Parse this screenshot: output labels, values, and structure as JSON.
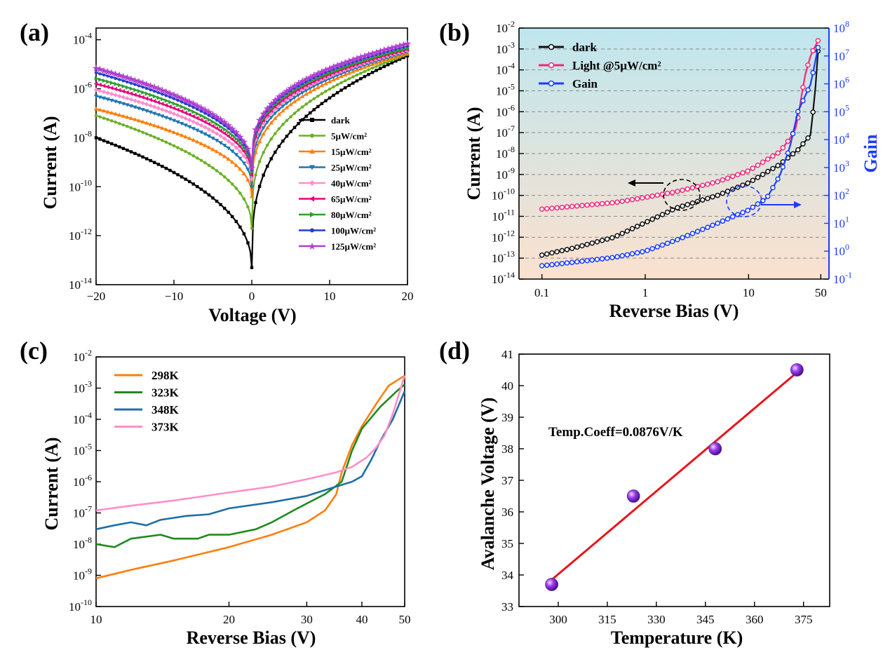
{
  "panels": [
    {
      "label": "(a)"
    },
    {
      "label": "(b)"
    },
    {
      "label": "(c)"
    },
    {
      "label": "(d)"
    }
  ],
  "chart_data": [
    {
      "type": "line",
      "panel": "(a)",
      "xlabel": "Voltage (V)",
      "ylabel": "Current (A)",
      "xlim": [
        -20,
        20
      ],
      "ylim": [
        1e-14,
        0.0003
      ],
      "yscale": "log",
      "xticks": [
        -20,
        -10,
        0,
        10,
        20
      ],
      "xtick_labels": [
        "−20",
        "−10",
        "0",
        "10",
        "20"
      ],
      "yticks": [
        1e-14,
        1e-12,
        1e-10,
        1e-08,
        1e-06,
        0.0001
      ],
      "ytick_labels": [
        [
          "10",
          "-14"
        ],
        [
          "10",
          "-12"
        ],
        [
          "10",
          "-10"
        ],
        [
          "10",
          "-8"
        ],
        [
          "10",
          "-6"
        ],
        [
          "10",
          "-4"
        ]
      ],
      "legend_position": "right",
      "series": [
        {
          "name": "dark",
          "color": "#000000",
          "marker": "square",
          "i_neg20": 1e-08,
          "i_pos20": 2.2e-05,
          "i_min": 5e-14
        },
        {
          "name": "5µW/cm²",
          "color": "#6ab023",
          "marker": "circle",
          "i_neg20": 8e-08,
          "i_pos20": 2.5e-05,
          "i_min": 2e-12
        },
        {
          "name": "15µW/cm²",
          "color": "#ff7f0e",
          "marker": "triangle-up",
          "i_neg20": 1.5e-07,
          "i_pos20": 2.8e-05,
          "i_min": 4e-11
        },
        {
          "name": "25µW/cm²",
          "color": "#1f77b4",
          "marker": "triangle-down",
          "i_neg20": 5e-07,
          "i_pos20": 3.2e-05,
          "i_min": 1e-10
        },
        {
          "name": "40µW/cm²",
          "color": "#ff8fcf",
          "marker": "diamond",
          "i_neg20": 9e-07,
          "i_pos20": 3.6e-05,
          "i_min": 2e-10
        },
        {
          "name": "65µW/cm²",
          "color": "#e6007e",
          "marker": "triangle-left",
          "i_neg20": 1.6e-06,
          "i_pos20": 4e-05,
          "i_min": 3e-10
        },
        {
          "name": "80µW/cm²",
          "color": "#2ca02c",
          "marker": "triangle-right",
          "i_neg20": 2.6e-06,
          "i_pos20": 4.5e-05,
          "i_min": 4e-10
        },
        {
          "name": "100µW/cm²",
          "color": "#1f3fcf",
          "marker": "hexagon",
          "i_neg20": 4.5e-06,
          "i_pos20": 5.5e-05,
          "i_min": 5e-10
        },
        {
          "name": "125µW/cm²",
          "color": "#b03fd0",
          "marker": "star",
          "i_neg20": 7e-06,
          "i_pos20": 7e-05,
          "i_min": 6e-10
        }
      ]
    },
    {
      "type": "line",
      "panel": "(b)",
      "xlabel": "Reverse Bias (V)",
      "ylabel": "Current (A)",
      "ylabel_right": "Gain",
      "xscale": "log",
      "xlim": [
        0.06,
        60
      ],
      "ylim": [
        1e-14,
        0.01
      ],
      "ylim_right": [
        0.1,
        100000000.0
      ],
      "yscale": "log",
      "xticks": [
        0.1,
        1,
        10,
        50
      ],
      "xtick_labels": [
        "0.1",
        "1",
        "10",
        "50"
      ],
      "yticks": [
        1e-14,
        1e-13,
        1e-12,
        1e-11,
        1e-10,
        1e-09,
        1e-08,
        1e-07,
        1e-06,
        1e-05,
        0.0001,
        0.001,
        0.01
      ],
      "ytick_labels": [
        [
          "10",
          "-14"
        ],
        [
          "10",
          "-13"
        ],
        [
          "10",
          "-12"
        ],
        [
          "10",
          "-11"
        ],
        [
          "10",
          "-10"
        ],
        [
          "10",
          "-9"
        ],
        [
          "10",
          "-8"
        ],
        [
          "10",
          "-7"
        ],
        [
          "10",
          "-6"
        ],
        [
          "10",
          "-5"
        ],
        [
          "10",
          "-4"
        ],
        [
          "10",
          "-3"
        ],
        [
          "10",
          "-2"
        ]
      ],
      "yticks_right": [
        0.1,
        1,
        10,
        100,
        1000,
        10000,
        100000,
        1000000,
        10000000,
        100000000
      ],
      "ytick_labels_right": [
        [
          "10",
          "-1"
        ],
        [
          "10",
          "0"
        ],
        [
          "10",
          "1"
        ],
        [
          "10",
          "2"
        ],
        [
          "10",
          "3"
        ],
        [
          "10",
          "4"
        ],
        [
          "10",
          "5"
        ],
        [
          "10",
          "6"
        ],
        [
          "10",
          "7"
        ],
        [
          "10",
          "8"
        ]
      ],
      "background_gradient": [
        "#bfe6ee",
        "#fbe1cf"
      ],
      "grid": "dashed horizontal",
      "legend_position": "top-left",
      "series": [
        {
          "name": "dark",
          "color": "#111111",
          "axis": "left",
          "points": [
            [
              0.1,
              1.4e-13
            ],
            [
              0.2,
              3e-13
            ],
            [
              0.5,
              1e-12
            ],
            [
              1,
              5e-12
            ],
            [
              2,
              2.5e-11
            ],
            [
              5,
              1e-10
            ],
            [
              10,
              4e-10
            ],
            [
              20,
              3e-09
            ],
            [
              30,
              1.5e-08
            ],
            [
              40,
              8e-08
            ],
            [
              45,
              3e-05
            ],
            [
              47,
              0.0008
            ]
          ]
        },
        {
          "name": "Light @5µW/cm²",
          "color": "#ee2a7b",
          "axis": "left",
          "points": [
            [
              0.1,
              2.2e-11
            ],
            [
              0.2,
              3e-11
            ],
            [
              0.5,
              4.5e-11
            ],
            [
              1,
              8e-11
            ],
            [
              2,
              1.5e-10
            ],
            [
              5,
              4.5e-10
            ],
            [
              10,
              1.5e-09
            ],
            [
              20,
              1.2e-08
            ],
            [
              25,
              5e-08
            ],
            [
              29,
              1.8e-07
            ],
            [
              35,
              5e-05
            ],
            [
              40,
              0.0005
            ],
            [
              47,
              0.0025
            ]
          ]
        },
        {
          "name": "Gain",
          "color": "#1a3cff",
          "axis": "right",
          "points": [
            [
              0.1,
              0.3
            ],
            [
              0.2,
              0.4
            ],
            [
              0.5,
              0.6
            ],
            [
              1,
              1.0
            ],
            [
              2,
              2.5
            ],
            [
              5,
              10
            ],
            [
              10,
              30
            ],
            [
              15,
              80
            ],
            [
              20,
              500
            ],
            [
              25,
              5000
            ],
            [
              30,
              100000.0
            ],
            [
              40,
              1000000.0
            ],
            [
              47,
              20000000.0
            ]
          ]
        }
      ],
      "annotations": []
    },
    {
      "type": "line",
      "panel": "(c)",
      "xlabel": "Reverse Bias (V)",
      "ylabel": "Current (A)",
      "xscale": "log",
      "xlim": [
        10,
        50
      ],
      "ylim": [
        1e-10,
        0.01
      ],
      "yscale": "log",
      "xticks": [
        10,
        20,
        30,
        40,
        50
      ],
      "xtick_labels": [
        "10",
        "20",
        "30",
        "40",
        "50"
      ],
      "yticks": [
        1e-10,
        1e-09,
        1e-08,
        1e-07,
        1e-06,
        1e-05,
        0.0001,
        0.001,
        0.01
      ],
      "ytick_labels": [
        [
          "10",
          "-10"
        ],
        [
          "10",
          "-9"
        ],
        [
          "10",
          "-8"
        ],
        [
          "10",
          "-7"
        ],
        [
          "10",
          "-6"
        ],
        [
          "10",
          "-5"
        ],
        [
          "10",
          "-4"
        ],
        [
          "10",
          "-3"
        ],
        [
          "10",
          "-2"
        ]
      ],
      "legend_position": "top-left",
      "series": [
        {
          "name": "298K",
          "color": "#ff7f0e",
          "points": [
            [
              10,
              8e-10
            ],
            [
              12,
              1.5e-09
            ],
            [
              15,
              3e-09
            ],
            [
              20,
              8e-09
            ],
            [
              25,
              2e-08
            ],
            [
              30,
              5e-08
            ],
            [
              33,
              1.2e-07
            ],
            [
              35,
              4e-07
            ],
            [
              36,
              2e-06
            ],
            [
              38,
              1.5e-05
            ],
            [
              40,
              6e-05
            ],
            [
              43,
              0.0003
            ],
            [
              46,
              0.0012
            ],
            [
              50,
              0.0025
            ]
          ]
        },
        {
          "name": "323K",
          "color": "#1e8a1e",
          "points": [
            [
              10,
              1e-08
            ],
            [
              11,
              8e-09
            ],
            [
              12,
              1.5e-08
            ],
            [
              14,
              2e-08
            ],
            [
              15,
              1.5e-08
            ],
            [
              17,
              1.5e-08
            ],
            [
              18,
              2e-08
            ],
            [
              20,
              2e-08
            ],
            [
              23,
              3e-08
            ],
            [
              25,
              5e-08
            ],
            [
              28,
              1.2e-07
            ],
            [
              30,
              2e-07
            ],
            [
              33,
              4e-07
            ],
            [
              36,
              1e-06
            ],
            [
              38,
              1e-05
            ],
            [
              40,
              5e-05
            ],
            [
              44,
              0.00025
            ],
            [
              48,
              0.0008
            ],
            [
              50,
              0.0013
            ]
          ]
        },
        {
          "name": "348K",
          "color": "#1f6fa8",
          "points": [
            [
              10,
              3e-08
            ],
            [
              11,
              4e-08
            ],
            [
              12,
              5e-08
            ],
            [
              13,
              4e-08
            ],
            [
              14,
              6e-08
            ],
            [
              16,
              8e-08
            ],
            [
              18,
              9e-08
            ],
            [
              20,
              1.4e-07
            ],
            [
              25,
              2.2e-07
            ],
            [
              30,
              3.5e-07
            ],
            [
              35,
              7e-07
            ],
            [
              38,
              1e-06
            ],
            [
              40,
              1.5e-06
            ],
            [
              42,
              5e-06
            ],
            [
              44,
              2e-05
            ],
            [
              47,
              0.0001
            ],
            [
              50,
              0.0008
            ]
          ]
        },
        {
          "name": "373K",
          "color": "#ff8fc8",
          "points": [
            [
              10,
              1.2e-07
            ],
            [
              12,
              1.7e-07
            ],
            [
              15,
              2.5e-07
            ],
            [
              20,
              4.5e-07
            ],
            [
              25,
              7e-07
            ],
            [
              30,
              1.2e-06
            ],
            [
              35,
              2e-06
            ],
            [
              38,
              3e-06
            ],
            [
              41,
              6e-06
            ],
            [
              43,
              1.2e-05
            ],
            [
              45,
              3e-05
            ],
            [
              47,
              0.00015
            ],
            [
              49,
              0.001
            ],
            [
              50,
              0.0025
            ]
          ]
        }
      ]
    },
    {
      "type": "scatter",
      "panel": "(d)",
      "xlabel": "Temperature (K)",
      "ylabel": "Avalanche Voltage (V)",
      "xlim": [
        288,
        383
      ],
      "ylim": [
        33,
        41
      ],
      "xticks": [
        300,
        315,
        330,
        345,
        360,
        375
      ],
      "yticks": [
        33,
        34,
        35,
        36,
        37,
        38,
        39,
        40,
        41
      ],
      "points": [
        [
          298,
          33.7
        ],
        [
          323,
          36.5
        ],
        [
          348,
          38.0
        ],
        [
          373,
          40.5
        ]
      ],
      "fit_line": {
        "color": "#e8141c",
        "x": [
          298,
          373
        ],
        "y": [
          33.85,
          40.42
        ]
      },
      "marker_color": "#8a2be2",
      "annotation": "Temp.Coeff=0.0876V/K"
    }
  ]
}
